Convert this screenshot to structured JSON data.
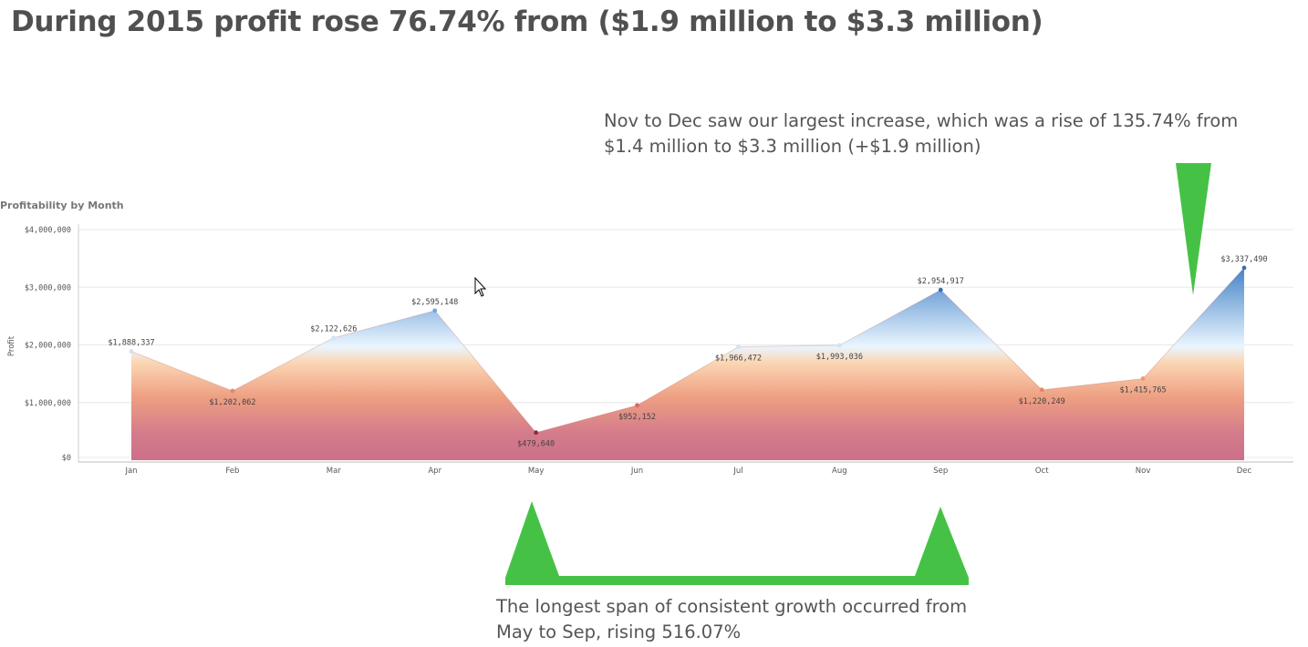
{
  "headline": "During 2015 profit rose 76.74% from ($1.9 million to $3.3 million)",
  "annotation_top": "Nov to Dec saw our largest increase, which was a rise of 135.74% from $1.4 million to $3.3 million (+$1.9 million)",
  "annotation_bottom": "The longest span of consistent growth occurred from May to Sep, rising 516.07%",
  "chart_data": {
    "type": "area",
    "title": "Profitability by Month",
    "xlabel": "",
    "ylabel": "Profit",
    "ylim": [
      0,
      4000000
    ],
    "yticks": [
      0,
      1000000,
      2000000,
      3000000,
      4000000
    ],
    "ytick_labels": [
      "$0",
      "$1,000,000",
      "$2,000,000",
      "$3,000,000",
      "$4,000,000"
    ],
    "categories": [
      "Jan",
      "Feb",
      "Mar",
      "Apr",
      "May",
      "Jun",
      "Jul",
      "Aug",
      "Sep",
      "Oct",
      "Nov",
      "Dec"
    ],
    "values": [
      1888337,
      1202062,
      2122626,
      2595148,
      479640,
      952152,
      1966472,
      1993036,
      2954917,
      1220249,
      1415765,
      3337490
    ],
    "value_labels": [
      "$1,888,337",
      "$1,202,062",
      "$2,122,626",
      "$2,595,148",
      "$479,640",
      "$952,152",
      "$1,966,472",
      "$1,993,036",
      "$2,954,917",
      "$1,220,249",
      "$1,415,765",
      "$3,337,490"
    ],
    "grid": true,
    "fill_gradient": [
      "#3d7fc6",
      "#dcefff",
      "#f9c9a0",
      "#e79a80",
      "#cf7a8e",
      "#cc7089"
    ],
    "highlight_color": "#45c245"
  }
}
